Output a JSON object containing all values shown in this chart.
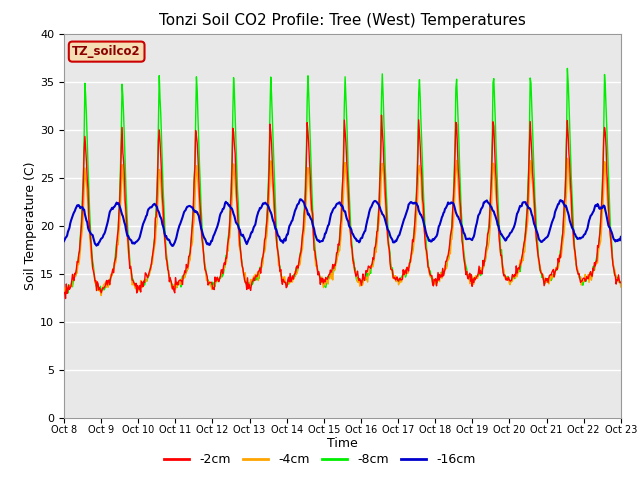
{
  "title": "Tonzi Soil CO2 Profile: Tree (West) Temperatures",
  "xlabel": "Time",
  "ylabel": "Soil Temperature (C)",
  "ylim": [
    0,
    40
  ],
  "x_tick_labels": [
    "Oct 8",
    "Oct 9",
    "Oct 10",
    "Oct 11",
    "Oct 12",
    "Oct 13",
    "Oct 14",
    "Oct 15",
    "Oct 16",
    "Oct 17",
    "Oct 18",
    "Oct 19",
    "Oct 20",
    "Oct 21",
    "Oct 22",
    "Oct 23"
  ],
  "colors": {
    "2cm": "#ff0000",
    "4cm": "#ffa500",
    "8cm": "#00ee00",
    "16cm": "#0000cc"
  },
  "legend_labels": [
    "-2cm",
    "-4cm",
    "-8cm",
    "-16cm"
  ],
  "legend_colors": [
    "#ff0000",
    "#ffa500",
    "#00ee00",
    "#0000cc"
  ],
  "watermark_text": "TZ_soilco2",
  "bg_color": "#e8e8e8",
  "title_fontsize": 11,
  "axis_label_fontsize": 9
}
